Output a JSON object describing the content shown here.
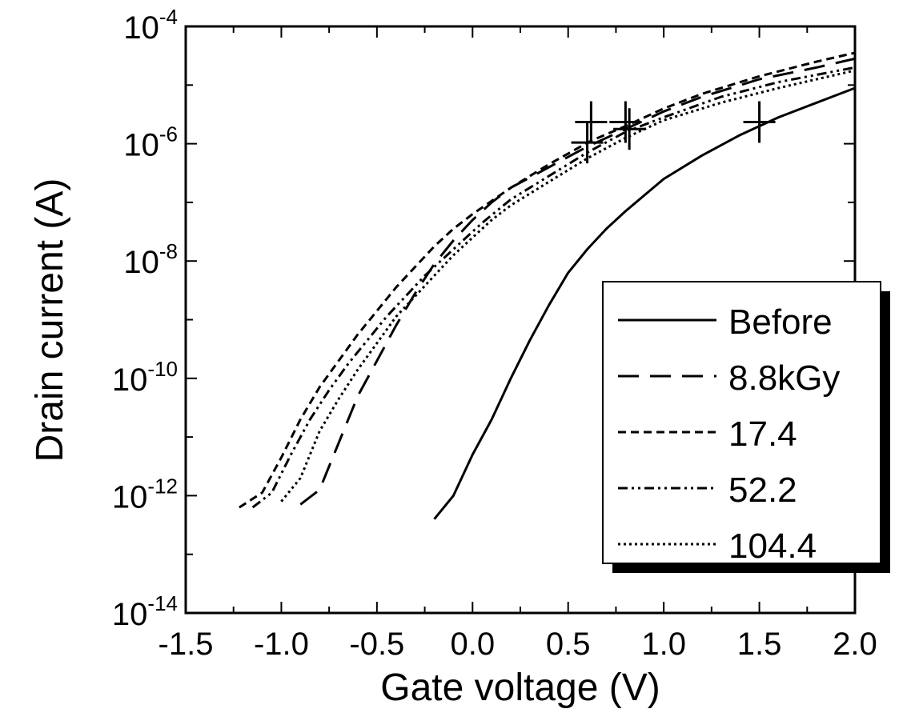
{
  "chart_data": {
    "type": "line",
    "title": "",
    "xlabel": "Gate voltage (V)",
    "ylabel": "Drain current (A)",
    "xlim": [
      -1.5,
      2.0
    ],
    "ylim_log10": [
      -14,
      -4
    ],
    "y_scale": "log",
    "x_ticks": [
      "-1.5",
      "-1.0",
      "-0.5",
      "0.0",
      "0.5",
      "1.0",
      "1.5",
      "2.0"
    ],
    "y_tick_base": "10",
    "y_tick_exponents": [
      "-4",
      "-6",
      "-8",
      "-10",
      "-12",
      "-14"
    ],
    "legend_position": "right",
    "series": [
      {
        "name": "Before",
        "dash": "solid",
        "points": [
          [
            -0.2,
            -12.4
          ],
          [
            -0.1,
            -12.0
          ],
          [
            0.0,
            -11.3
          ],
          [
            0.1,
            -10.7
          ],
          [
            0.2,
            -10.0
          ],
          [
            0.3,
            -9.35
          ],
          [
            0.4,
            -8.75
          ],
          [
            0.5,
            -8.2
          ],
          [
            0.6,
            -7.8
          ],
          [
            0.7,
            -7.45
          ],
          [
            0.8,
            -7.15
          ],
          [
            1.0,
            -6.6
          ],
          [
            1.2,
            -6.2
          ],
          [
            1.4,
            -5.85
          ],
          [
            1.6,
            -5.55
          ],
          [
            1.8,
            -5.3
          ],
          [
            2.0,
            -5.05
          ]
        ],
        "marker": [
          1.5,
          -5.63
        ]
      },
      {
        "name": "8.8kGy",
        "dash": "long-dash",
        "points": [
          [
            -0.9,
            -12.15
          ],
          [
            -0.8,
            -11.9
          ],
          [
            -0.7,
            -11.1
          ],
          [
            -0.6,
            -10.3
          ],
          [
            -0.5,
            -9.7
          ],
          [
            -0.4,
            -9.1
          ],
          [
            -0.3,
            -8.55
          ],
          [
            -0.2,
            -8.05
          ],
          [
            -0.1,
            -7.65
          ],
          [
            0.0,
            -7.3
          ],
          [
            0.1,
            -7.0
          ],
          [
            0.2,
            -6.75
          ],
          [
            0.4,
            -6.4
          ],
          [
            0.6,
            -6.05
          ],
          [
            0.8,
            -5.75
          ],
          [
            1.0,
            -5.45
          ],
          [
            1.2,
            -5.2
          ],
          [
            1.5,
            -4.9
          ],
          [
            1.8,
            -4.7
          ],
          [
            2.0,
            -4.55
          ]
        ],
        "marker": [
          0.8,
          -5.63
        ]
      },
      {
        "name": "17.4",
        "dash": "short-dash",
        "points": [
          [
            -1.22,
            -12.2
          ],
          [
            -1.1,
            -11.95
          ],
          [
            -1.0,
            -11.35
          ],
          [
            -0.9,
            -10.7
          ],
          [
            -0.8,
            -10.15
          ],
          [
            -0.7,
            -9.7
          ],
          [
            -0.6,
            -9.25
          ],
          [
            -0.5,
            -8.85
          ],
          [
            -0.4,
            -8.45
          ],
          [
            -0.3,
            -8.1
          ],
          [
            -0.2,
            -7.75
          ],
          [
            -0.1,
            -7.45
          ],
          [
            0.0,
            -7.2
          ],
          [
            0.2,
            -6.75
          ],
          [
            0.4,
            -6.35
          ],
          [
            0.62,
            -5.95
          ],
          [
            0.8,
            -5.7
          ],
          [
            1.0,
            -5.4
          ],
          [
            1.2,
            -5.15
          ],
          [
            1.5,
            -4.85
          ],
          [
            1.8,
            -4.6
          ],
          [
            2.0,
            -4.45
          ]
        ],
        "marker": [
          0.62,
          -5.63
        ]
      },
      {
        "name": "52.2",
        "dash": "dash-dot-dot",
        "points": [
          [
            -1.15,
            -12.2
          ],
          [
            -1.05,
            -11.95
          ],
          [
            -0.95,
            -11.3
          ],
          [
            -0.85,
            -10.7
          ],
          [
            -0.75,
            -10.2
          ],
          [
            -0.65,
            -9.75
          ],
          [
            -0.55,
            -9.35
          ],
          [
            -0.45,
            -8.95
          ],
          [
            -0.35,
            -8.6
          ],
          [
            -0.25,
            -8.25
          ],
          [
            -0.15,
            -7.95
          ],
          [
            -0.05,
            -7.65
          ],
          [
            0.05,
            -7.35
          ],
          [
            0.2,
            -6.95
          ],
          [
            0.4,
            -6.55
          ],
          [
            0.6,
            -6.15
          ],
          [
            0.8,
            -5.8
          ],
          [
            1.0,
            -5.55
          ],
          [
            1.3,
            -5.2
          ],
          [
            1.6,
            -4.95
          ],
          [
            2.0,
            -4.7
          ]
        ],
        "marker": [
          0.6,
          -5.98
        ]
      },
      {
        "name": "104.4",
        "dash": "dotted",
        "points": [
          [
            -1.0,
            -12.1
          ],
          [
            -0.9,
            -11.7
          ],
          [
            -0.8,
            -10.9
          ],
          [
            -0.7,
            -10.35
          ],
          [
            -0.6,
            -9.85
          ],
          [
            -0.5,
            -9.4
          ],
          [
            -0.4,
            -8.95
          ],
          [
            -0.3,
            -8.6
          ],
          [
            -0.2,
            -8.25
          ],
          [
            -0.1,
            -7.9
          ],
          [
            0.0,
            -7.6
          ],
          [
            0.1,
            -7.3
          ],
          [
            0.2,
            -7.05
          ],
          [
            0.4,
            -6.65
          ],
          [
            0.6,
            -6.25
          ],
          [
            0.8,
            -5.9
          ],
          [
            1.0,
            -5.6
          ],
          [
            1.3,
            -5.3
          ],
          [
            1.6,
            -5.05
          ],
          [
            2.0,
            -4.75
          ]
        ],
        "marker": [
          0.82,
          -5.75
        ]
      }
    ]
  }
}
